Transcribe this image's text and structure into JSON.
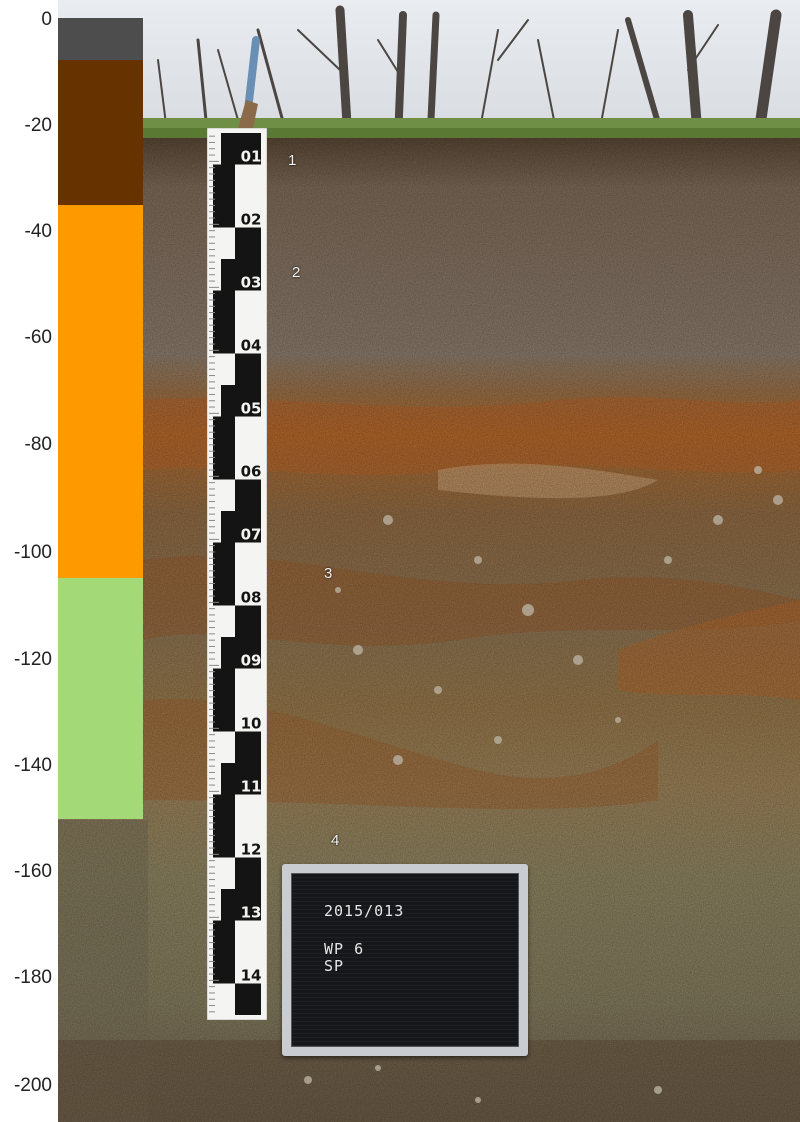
{
  "depth_axis": {
    "ticks": [
      "0",
      "-20",
      "-40",
      "-60",
      "-80",
      "-100",
      "-120",
      "-140",
      "-160",
      "-180",
      "-200"
    ]
  },
  "horizon_bar": [
    {
      "from": 0,
      "to": -8,
      "color": "#4d4d4d"
    },
    {
      "from": -8,
      "to": -35,
      "color": "#663300"
    },
    {
      "from": -35,
      "to": -105,
      "color": "#ff9900"
    },
    {
      "from": -105,
      "to": -150,
      "color": "#a3d977"
    }
  ],
  "horizon_labels": [
    "1",
    "2",
    "3",
    "4"
  ],
  "ruler": {
    "labels": [
      "01",
      "02",
      "03",
      "04",
      "05",
      "06",
      "07",
      "08",
      "09",
      "10",
      "11",
      "12",
      "13",
      "14"
    ]
  },
  "board": {
    "line1": "2015/013",
    "line2": "WP 6",
    "line3": "SP"
  }
}
